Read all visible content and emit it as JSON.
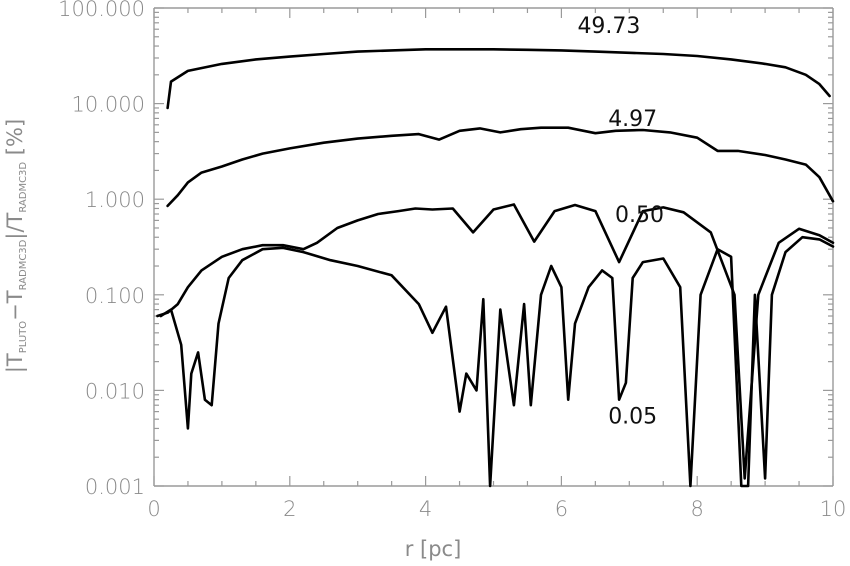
{
  "chart_data": {
    "type": "line",
    "xlabel": "r [pc]",
    "ylabel": {
      "prefix": "|T",
      "sub1": "PLUTO",
      "minus": "−T",
      "sub2": "RADMC3D",
      "mid": "|/T",
      "sub3": "RADMC3D",
      "suffix": " [%]"
    },
    "xlim": [
      0,
      10
    ],
    "ylim": [
      0.001,
      100
    ],
    "yscale": "log",
    "xticks": [
      0,
      2,
      4,
      6,
      8,
      10
    ],
    "xtick_labels": [
      "0",
      "2",
      "4",
      "6",
      "8",
      "10"
    ],
    "yticks": [
      0.001,
      0.01,
      0.1,
      1,
      10,
      100
    ],
    "ytick_labels": [
      "0.001",
      "0.010",
      "0.100",
      "1.000",
      "10.000",
      "100.000"
    ],
    "grid": false,
    "series": [
      {
        "name": "49.73",
        "color": "#000000",
        "points": [
          [
            0.2,
            9.0
          ],
          [
            0.25,
            17
          ],
          [
            0.5,
            22
          ],
          [
            1.0,
            26
          ],
          [
            1.5,
            29
          ],
          [
            2.0,
            31
          ],
          [
            2.5,
            33
          ],
          [
            3.0,
            35
          ],
          [
            3.5,
            36
          ],
          [
            4.0,
            37
          ],
          [
            4.5,
            37
          ],
          [
            5.0,
            37
          ],
          [
            5.5,
            36.5
          ],
          [
            6.0,
            36
          ],
          [
            6.5,
            35
          ],
          [
            7.0,
            34
          ],
          [
            7.5,
            33
          ],
          [
            8.0,
            31.5
          ],
          [
            8.5,
            29
          ],
          [
            9.0,
            26
          ],
          [
            9.3,
            24
          ],
          [
            9.6,
            20
          ],
          [
            9.8,
            16
          ],
          [
            9.95,
            12
          ]
        ]
      },
      {
        "name": "4.97",
        "color": "#000000",
        "points": [
          [
            0.2,
            0.85
          ],
          [
            0.35,
            1.1
          ],
          [
            0.5,
            1.5
          ],
          [
            0.7,
            1.9
          ],
          [
            1.0,
            2.2
          ],
          [
            1.3,
            2.6
          ],
          [
            1.6,
            3.0
          ],
          [
            2.0,
            3.4
          ],
          [
            2.5,
            3.9
          ],
          [
            3.0,
            4.3
          ],
          [
            3.5,
            4.6
          ],
          [
            3.9,
            4.8
          ],
          [
            4.2,
            4.2
          ],
          [
            4.5,
            5.2
          ],
          [
            4.8,
            5.5
          ],
          [
            5.1,
            5.0
          ],
          [
            5.4,
            5.4
          ],
          [
            5.7,
            5.6
          ],
          [
            6.1,
            5.6
          ],
          [
            6.5,
            4.9
          ],
          [
            6.8,
            5.2
          ],
          [
            7.2,
            5.3
          ],
          [
            7.6,
            5.0
          ],
          [
            8.0,
            4.4
          ],
          [
            8.3,
            3.2
          ],
          [
            8.6,
            3.2
          ],
          [
            9.0,
            2.9
          ],
          [
            9.3,
            2.6
          ],
          [
            9.6,
            2.3
          ],
          [
            9.8,
            1.7
          ],
          [
            10.0,
            0.95
          ]
        ]
      },
      {
        "name": "0.50",
        "color": "#000000",
        "points": [
          [
            0.05,
            0.06
          ],
          [
            0.2,
            0.065
          ],
          [
            0.35,
            0.08
          ],
          [
            0.5,
            0.12
          ],
          [
            0.7,
            0.18
          ],
          [
            1.0,
            0.25
          ],
          [
            1.3,
            0.3
          ],
          [
            1.6,
            0.33
          ],
          [
            1.9,
            0.33
          ],
          [
            2.2,
            0.3
          ],
          [
            2.4,
            0.35
          ],
          [
            2.7,
            0.5
          ],
          [
            3.0,
            0.6
          ],
          [
            3.3,
            0.7
          ],
          [
            3.6,
            0.75
          ],
          [
            3.85,
            0.8
          ],
          [
            4.1,
            0.78
          ],
          [
            4.4,
            0.8
          ],
          [
            4.7,
            0.45
          ],
          [
            5.0,
            0.78
          ],
          [
            5.3,
            0.88
          ],
          [
            5.6,
            0.36
          ],
          [
            5.9,
            0.75
          ],
          [
            6.2,
            0.87
          ],
          [
            6.5,
            0.75
          ],
          [
            6.85,
            0.22
          ],
          [
            7.2,
            0.75
          ],
          [
            7.5,
            0.82
          ],
          [
            7.8,
            0.73
          ],
          [
            8.2,
            0.45
          ],
          [
            8.55,
            0.1
          ],
          [
            8.7,
            0.0012
          ],
          [
            8.9,
            0.1
          ],
          [
            9.2,
            0.35
          ],
          [
            9.5,
            0.49
          ],
          [
            9.8,
            0.42
          ],
          [
            10.0,
            0.35
          ]
        ]
      },
      {
        "name": "0.05",
        "color": "#000000",
        "points": [
          [
            0.1,
            0.06
          ],
          [
            0.25,
            0.07
          ],
          [
            0.4,
            0.03
          ],
          [
            0.5,
            0.004
          ],
          [
            0.55,
            0.015
          ],
          [
            0.65,
            0.025
          ],
          [
            0.75,
            0.008
          ],
          [
            0.85,
            0.007
          ],
          [
            0.95,
            0.05
          ],
          [
            1.1,
            0.15
          ],
          [
            1.3,
            0.23
          ],
          [
            1.6,
            0.3
          ],
          [
            1.9,
            0.31
          ],
          [
            2.2,
            0.28
          ],
          [
            2.6,
            0.23
          ],
          [
            3.0,
            0.2
          ],
          [
            3.5,
            0.16
          ],
          [
            3.9,
            0.08
          ],
          [
            4.1,
            0.04
          ],
          [
            4.3,
            0.075
          ],
          [
            4.5,
            0.006
          ],
          [
            4.6,
            0.015
          ],
          [
            4.75,
            0.01
          ],
          [
            4.85,
            0.09
          ],
          [
            4.95,
            0.0009
          ],
          [
            5.1,
            0.07
          ],
          [
            5.3,
            0.007
          ],
          [
            5.45,
            0.08
          ],
          [
            5.55,
            0.007
          ],
          [
            5.7,
            0.1
          ],
          [
            5.85,
            0.2
          ],
          [
            6.0,
            0.12
          ],
          [
            6.1,
            0.008
          ],
          [
            6.2,
            0.05
          ],
          [
            6.4,
            0.12
          ],
          [
            6.6,
            0.18
          ],
          [
            6.75,
            0.15
          ],
          [
            6.85,
            0.008
          ],
          [
            6.95,
            0.012
          ],
          [
            7.05,
            0.15
          ],
          [
            7.2,
            0.22
          ],
          [
            7.5,
            0.24
          ],
          [
            7.75,
            0.12
          ],
          [
            7.9,
            0.0009
          ],
          [
            8.05,
            0.1
          ],
          [
            8.3,
            0.3
          ],
          [
            8.5,
            0.25
          ],
          [
            8.65,
            0.0009
          ],
          [
            8.75,
            0.0009
          ],
          [
            8.85,
            0.1
          ],
          [
            9.0,
            0.0012
          ],
          [
            9.1,
            0.1
          ],
          [
            9.3,
            0.28
          ],
          [
            9.55,
            0.4
          ],
          [
            9.8,
            0.38
          ],
          [
            10.0,
            0.32
          ]
        ]
      }
    ],
    "annotations": [
      {
        "text": "49.73",
        "x": 6.7,
        "y": 55
      },
      {
        "text": "4.97",
        "x": 7.05,
        "y": 5.8
      },
      {
        "text": "0.50",
        "x": 7.15,
        "y": 0.58
      },
      {
        "text": "0.05",
        "x": 7.05,
        "y": 0.0045
      }
    ]
  }
}
